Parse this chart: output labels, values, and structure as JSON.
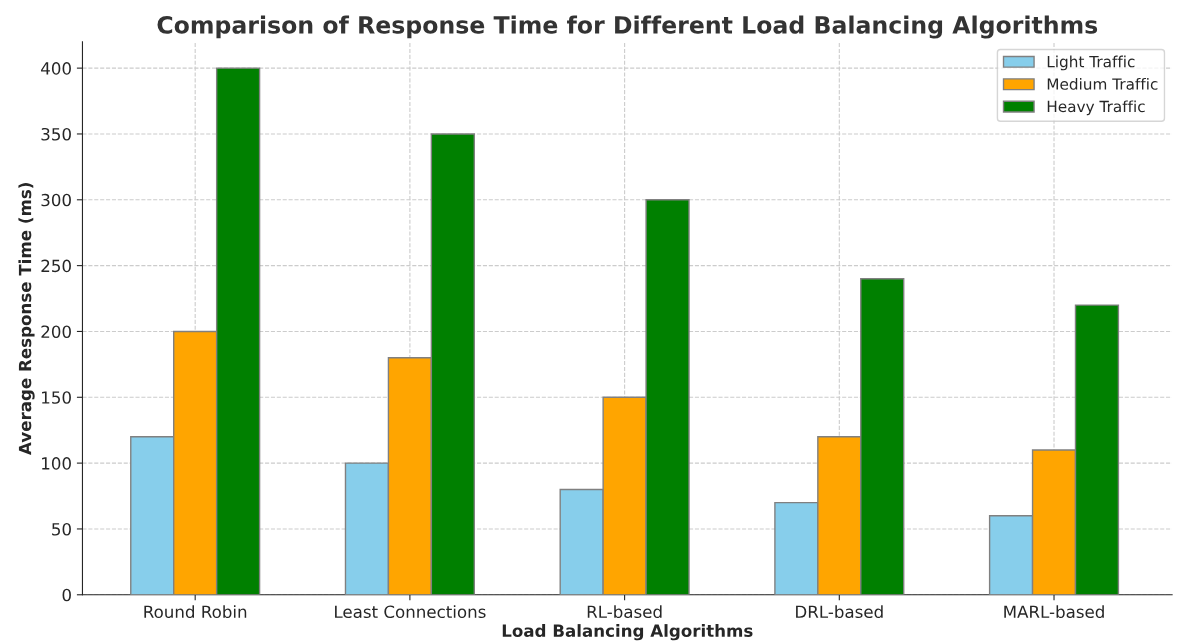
{
  "chart_data": {
    "type": "bar",
    "title": "Comparison of Response Time for Different Load Balancing Algorithms",
    "xlabel": "Load Balancing Algorithms",
    "ylabel": "Average Response Time (ms)",
    "categories": [
      "Round Robin",
      "Least Connections",
      "RL-based",
      "DRL-based",
      "MARL-based"
    ],
    "series": [
      {
        "name": "Light Traffic",
        "color": "#87ceeb",
        "values": [
          120,
          100,
          80,
          70,
          60
        ]
      },
      {
        "name": "Medium Traffic",
        "color": "#ffa500",
        "values": [
          200,
          180,
          150,
          120,
          110
        ]
      },
      {
        "name": "Heavy Traffic",
        "color": "#008000",
        "values": [
          400,
          350,
          300,
          240,
          220
        ]
      }
    ],
    "ylim": [
      0,
      420
    ],
    "yticks": [
      0,
      50,
      100,
      150,
      200,
      250,
      300,
      350,
      400
    ],
    "grid": true,
    "legend": "top right"
  }
}
